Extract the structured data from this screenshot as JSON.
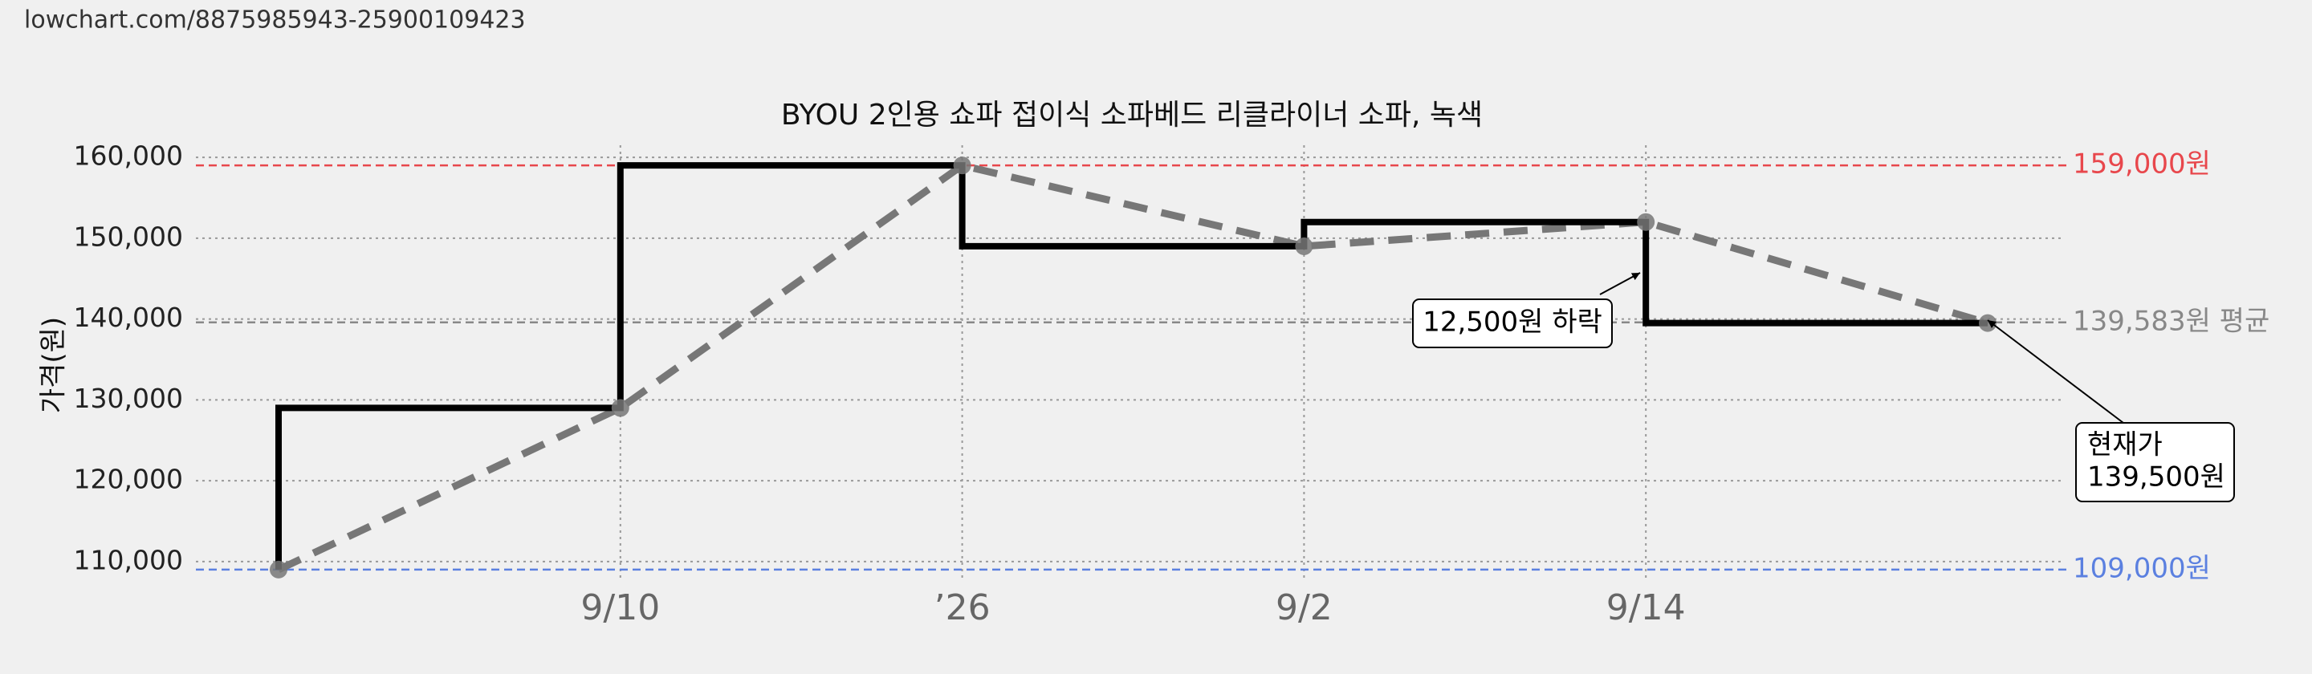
{
  "url": "lowchart.com/8875985943-25900109423",
  "chart_data": {
    "type": "line",
    "title": "BYOU 2인용 쇼파 접이식 소파베드 리클라이너 소파, 녹색",
    "y_label": "가격(원)",
    "categories": [
      null,
      "9/10",
      "’26",
      "9/2",
      "9/14",
      null
    ],
    "values": [
      109000,
      129000,
      159000,
      149000,
      152000,
      139500
    ],
    "step": "pre",
    "color": "#000000",
    "trend_color": "#777777",
    "trend_dashed": true,
    "ylim": [
      107500,
      161500
    ],
    "yticks": [
      {
        "value": 110000,
        "label": "110,000"
      },
      {
        "value": 120000,
        "label": "120,000"
      },
      {
        "value": 130000,
        "label": "130,000"
      },
      {
        "value": 140000,
        "label": "140,000"
      },
      {
        "value": 150000,
        "label": "150,000"
      },
      {
        "value": 160000,
        "label": "160,000"
      }
    ],
    "grid": true,
    "reference_lines": [
      {
        "value": 159000,
        "label": "159,000원",
        "color": "#e8474c"
      },
      {
        "value": 109000,
        "label": "109,000원",
        "color": "#5b80e0"
      },
      {
        "value": 139583,
        "label": "139,583원 평균",
        "color": "#888888"
      }
    ],
    "annotations": [
      {
        "lines": [
          "12,500원 하락"
        ]
      },
      {
        "lines": [
          "현재가",
          "139,500원"
        ]
      }
    ]
  }
}
